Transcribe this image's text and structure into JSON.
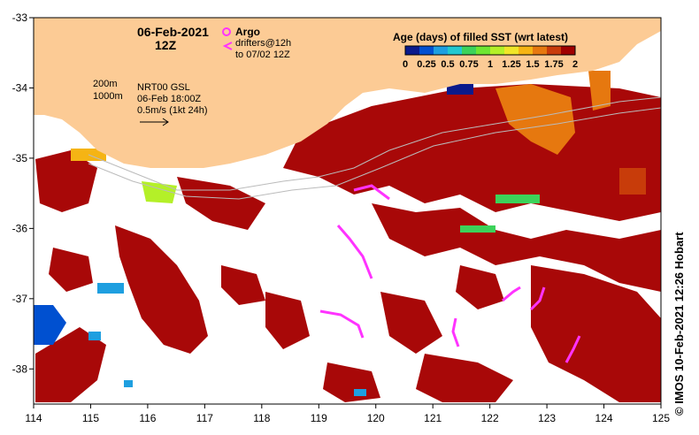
{
  "map": {
    "date_line1": "06-Feb-2021",
    "date_line2": "12Z",
    "legend_argo": "Argo",
    "legend_drifters1": "drifters@12h",
    "legend_drifters2": "to 07/02 12Z",
    "contour_200": "200m",
    "contour_1000": "1000m",
    "gsl_line1": "NRT00 GSL",
    "gsl_line2": "06-Feb 18:00Z",
    "gsl_line3": "0.5m/s (1kt 24h)",
    "colorbar_title": "Age (days) of filled SST (wrt latest)",
    "colorbar_ticks": [
      "0",
      "0.25",
      "0.5",
      "0.75",
      "1",
      "1.25",
      "1.5",
      "1.75",
      "2"
    ],
    "colorbar_colors": [
      "#0a1a8c",
      "#0050d0",
      "#1e9fe0",
      "#22c8d0",
      "#3cd25a",
      "#6ee632",
      "#b4f028",
      "#f0e628",
      "#f5b414",
      "#e6780f",
      "#c83c0a",
      "#a00000"
    ],
    "credit": "© IMOS 10-Feb-2021 12:26 Hobart",
    "x_ticks": [
      "114",
      "115",
      "116",
      "117",
      "118",
      "119",
      "120",
      "121",
      "122",
      "123",
      "124",
      "125"
    ],
    "y_ticks": [
      "-33",
      "-34",
      "-35",
      "-36",
      "-37",
      "-38"
    ],
    "lon_range": [
      114,
      125
    ],
    "lat_range": [
      -38.5,
      -33
    ]
  },
  "colors": {
    "land": "#fccb95",
    "sst_dominant": "#a80808",
    "drifter": "#ff33ff",
    "argo": "#ff33ff"
  }
}
